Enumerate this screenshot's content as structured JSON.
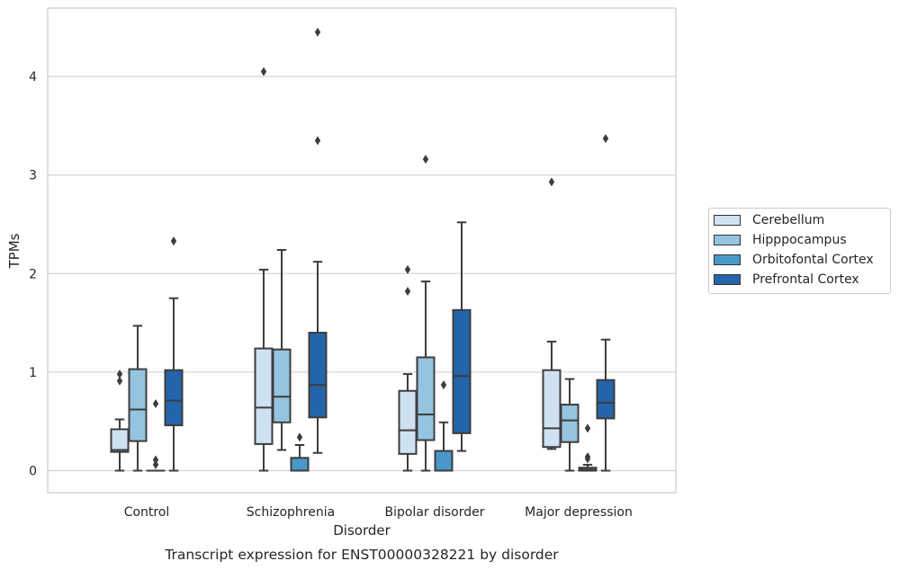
{
  "chart_data": {
    "type": "box",
    "title": "Transcript expression for ENST00000328221 by disorder",
    "xlabel": "Disorder",
    "ylabel": "TPMs",
    "ylim": [
      -0.22,
      4.7
    ],
    "yticks": [
      0,
      1,
      2,
      3,
      4
    ],
    "grid": "horizontal",
    "legend_position": "right",
    "categories": [
      "Control",
      "Schizophrenia",
      "Bipolar disorder",
      "Major depression"
    ],
    "series": [
      {
        "name": "Cerebellum",
        "color": "#d0e1f2",
        "boxes": [
          {
            "whislo": 0.0,
            "q1": 0.19,
            "med": 0.21,
            "q3": 0.42,
            "whishi": 0.52,
            "fliers": [
              0.98,
              0.91
            ]
          },
          {
            "whislo": 0.0,
            "q1": 0.27,
            "med": 0.64,
            "q3": 1.24,
            "whishi": 2.04,
            "fliers": [
              4.05
            ]
          },
          {
            "whislo": 0.0,
            "q1": 0.17,
            "med": 0.41,
            "q3": 0.81,
            "whishi": 0.98,
            "fliers": [
              2.04,
              1.82
            ]
          },
          {
            "whislo": 0.22,
            "q1": 0.24,
            "med": 0.43,
            "q3": 1.02,
            "whishi": 1.31,
            "fliers": [
              2.93
            ]
          }
        ]
      },
      {
        "name": "Hipppocampus",
        "color": "#94c4df",
        "boxes": [
          {
            "whislo": 0.0,
            "q1": 0.3,
            "med": 0.62,
            "q3": 1.03,
            "whishi": 1.47,
            "fliers": []
          },
          {
            "whislo": 0.21,
            "q1": 0.49,
            "med": 0.75,
            "q3": 1.23,
            "whishi": 2.24,
            "fliers": []
          },
          {
            "whislo": 0.0,
            "q1": 0.31,
            "med": 0.57,
            "q3": 1.15,
            "whishi": 1.92,
            "fliers": [
              3.16
            ]
          },
          {
            "whislo": 0.0,
            "q1": 0.29,
            "med": 0.51,
            "q3": 0.67,
            "whishi": 0.93,
            "fliers": []
          }
        ]
      },
      {
        "name": "Orbitofontal Cortex",
        "color": "#4a98c9",
        "boxes": [
          {
            "whislo": 0.0,
            "q1": 0.0,
            "med": 0.0,
            "q3": 0.0,
            "whishi": 0.0,
            "fliers": [
              0.68,
              0.11,
              0.06
            ]
          },
          {
            "whislo": 0.0,
            "q1": 0.0,
            "med": 0.0,
            "q3": 0.13,
            "whishi": 0.26,
            "fliers": [
              0.34
            ]
          },
          {
            "whislo": 0.0,
            "q1": 0.0,
            "med": 0.0,
            "q3": 0.2,
            "whishi": 0.49,
            "fliers": [
              0.87
            ]
          },
          {
            "whislo": 0.0,
            "q1": 0.0,
            "med": 0.01,
            "q3": 0.03,
            "whishi": 0.06,
            "fliers": [
              0.43,
              0.14,
              0.12
            ]
          }
        ]
      },
      {
        "name": "Prefrontal Cortex",
        "color": "#2364aa",
        "boxes": [
          {
            "whislo": 0.0,
            "q1": 0.46,
            "med": 0.71,
            "q3": 1.02,
            "whishi": 1.75,
            "fliers": [
              2.33
            ]
          },
          {
            "whislo": 0.18,
            "q1": 0.54,
            "med": 0.87,
            "q3": 1.4,
            "whishi": 2.12,
            "fliers": [
              4.45,
              3.35
            ]
          },
          {
            "whislo": 0.2,
            "q1": 0.38,
            "med": 0.96,
            "q3": 1.63,
            "whishi": 2.52,
            "fliers": []
          },
          {
            "whislo": 0.0,
            "q1": 0.53,
            "med": 0.69,
            "q3": 0.92,
            "whishi": 1.33,
            "fliers": [
              3.37
            ]
          }
        ]
      }
    ]
  }
}
